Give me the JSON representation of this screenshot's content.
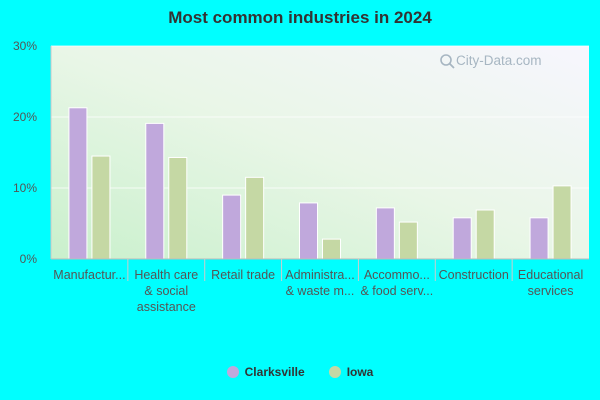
{
  "chart_data": {
    "type": "bar",
    "title": "Most common industries in 2024",
    "watermark": "City-Data.com",
    "categories": [
      [
        "Manufactur..."
      ],
      [
        "Health care",
        "& social",
        "assistance"
      ],
      [
        "Retail trade"
      ],
      [
        "Administra...",
        "& waste m..."
      ],
      [
        "Accommo...",
        "& food serv..."
      ],
      [
        "Construction"
      ],
      [
        "Educational",
        "services"
      ]
    ],
    "series": [
      {
        "name": "Clarksville",
        "color": "#c0a8dc",
        "values": [
          21.3,
          19.1,
          9.0,
          7.9,
          7.2,
          5.8,
          5.8
        ]
      },
      {
        "name": "Iowa",
        "color": "#c5d8a4",
        "values": [
          14.5,
          14.3,
          11.5,
          2.8,
          5.2,
          6.9,
          10.3
        ]
      }
    ],
    "yticks": [
      "0%",
      "10%",
      "20%",
      "30%"
    ],
    "ylim": [
      0,
      30
    ],
    "grid": true,
    "legend_position": "bottom"
  }
}
